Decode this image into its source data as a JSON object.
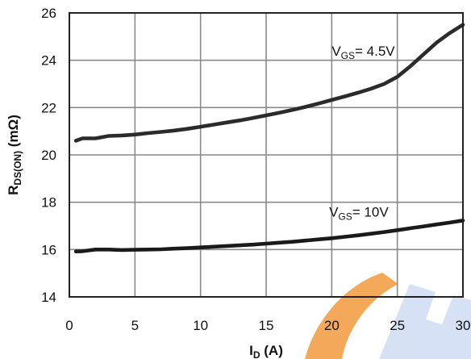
{
  "chart_data": {
    "type": "line",
    "xlabel": "I",
    "xlabel_sub": "D",
    "xlabel_unit": " (A)",
    "ylabel": "R",
    "ylabel_sub": "DS(ON)",
    "ylabel_unit": " (mΩ)",
    "xlim": [
      0,
      30
    ],
    "ylim": [
      14,
      26
    ],
    "xticks": [
      0,
      5,
      10,
      15,
      20,
      25,
      30
    ],
    "yticks": [
      14,
      16,
      18,
      20,
      22,
      24,
      26
    ],
    "grid": true,
    "series": [
      {
        "label_main": "V",
        "label_sub": "GS",
        "label_value": "= 4.5V",
        "color": "#2b2b2b",
        "x": [
          0.5,
          1,
          2,
          3,
          4,
          5,
          6,
          7,
          8,
          9,
          10,
          11,
          12,
          13,
          14,
          15,
          16,
          17,
          18,
          19,
          20,
          21,
          22,
          23,
          24,
          25,
          26,
          27,
          28,
          29,
          30
        ],
        "y": [
          20.6,
          20.7,
          20.7,
          20.8,
          20.82,
          20.86,
          20.92,
          20.97,
          21.03,
          21.1,
          21.19,
          21.28,
          21.37,
          21.46,
          21.56,
          21.67,
          21.78,
          21.9,
          22.03,
          22.17,
          22.32,
          22.47,
          22.63,
          22.8,
          23.0,
          23.3,
          23.75,
          24.25,
          24.75,
          25.15,
          25.5
        ]
      },
      {
        "label_main": "V",
        "label_sub": "GS",
        "label_value": "= 10V",
        "color": "#1a1a1a",
        "x": [
          0.5,
          1,
          2,
          3,
          4,
          5,
          6,
          7,
          8,
          9,
          10,
          11,
          12,
          13,
          14,
          15,
          16,
          17,
          18,
          19,
          20,
          21,
          22,
          23,
          24,
          25,
          26,
          27,
          28,
          29,
          30
        ],
        "y": [
          15.92,
          15.93,
          16.0,
          16.0,
          15.98,
          15.99,
          16.0,
          16.01,
          16.04,
          16.06,
          16.09,
          16.12,
          16.15,
          16.18,
          16.21,
          16.25,
          16.29,
          16.33,
          16.38,
          16.43,
          16.48,
          16.54,
          16.6,
          16.67,
          16.74,
          16.82,
          16.9,
          16.98,
          17.06,
          17.14,
          17.23
        ]
      }
    ],
    "annotations": [
      {
        "series": 0,
        "x": 20,
        "y": 24.2
      },
      {
        "series": 1,
        "x": 19.8,
        "y": 17.4
      }
    ]
  }
}
